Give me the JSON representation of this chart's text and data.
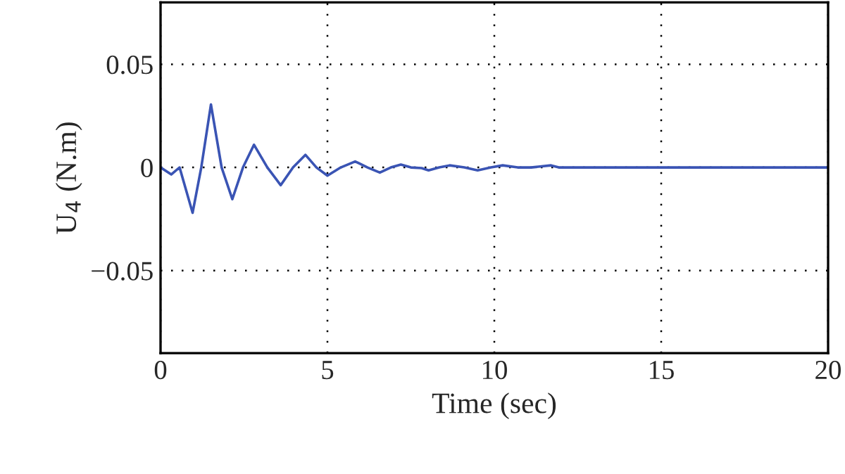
{
  "chart_data": {
    "type": "line",
    "xlabel": "Time (sec)",
    "ylabel": "U$_{4}$ (N.m)",
    "x": [
      0,
      0.32,
      0.57,
      0.96,
      1.22,
      1.51,
      1.83,
      2.15,
      2.47,
      2.8,
      3.2,
      3.6,
      3.97,
      4.34,
      4.67,
      5.0,
      5.4,
      5.83,
      6.2,
      6.57,
      6.9,
      7.2,
      7.5,
      7.82,
      8.03,
      8.35,
      8.66,
      9.1,
      9.5,
      9.9,
      10.25,
      10.7,
      11.1,
      11.7,
      11.93,
      20
    ],
    "series": [
      {
        "color": "#3a54b4",
        "values": [
          0,
          -0.0034,
          0,
          -0.022,
          0,
          0.0305,
          0,
          -0.0154,
          0,
          0.011,
          0,
          -0.0086,
          0,
          0.0061,
          0,
          -0.004,
          0,
          0.0029,
          0,
          -0.0025,
          0,
          0.0014,
          0,
          -0.0003,
          -0.0014,
          0,
          0.001,
          0,
          -0.0014,
          0,
          0.001,
          0,
          0,
          0.001,
          0,
          0
        ]
      }
    ],
    "xlim": [
      0,
      20
    ],
    "xticks": [
      0,
      5,
      10,
      15,
      20
    ],
    "ylim": [
      -0.09,
      0.08
    ],
    "yticks": [
      {
        "value": -0.05,
        "label": "−0.05"
      },
      0,
      0.05
    ],
    "grid": true,
    "line_style": "solid",
    "marker": "none",
    "legend": false
  }
}
